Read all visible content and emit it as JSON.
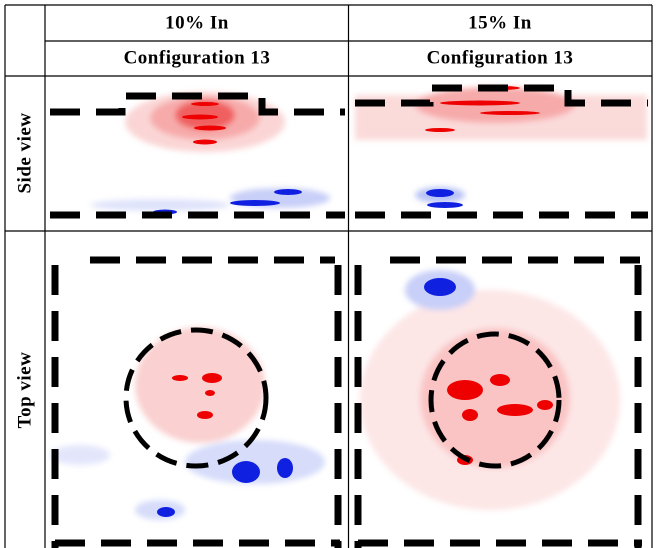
{
  "columns": [
    {
      "title": "10% In",
      "subtitle": "Configuration 13"
    },
    {
      "title": "15% In",
      "subtitle": "Configuration 13"
    }
  ],
  "rows": [
    {
      "label": "Side view"
    },
    {
      "label": "Top view"
    }
  ]
}
